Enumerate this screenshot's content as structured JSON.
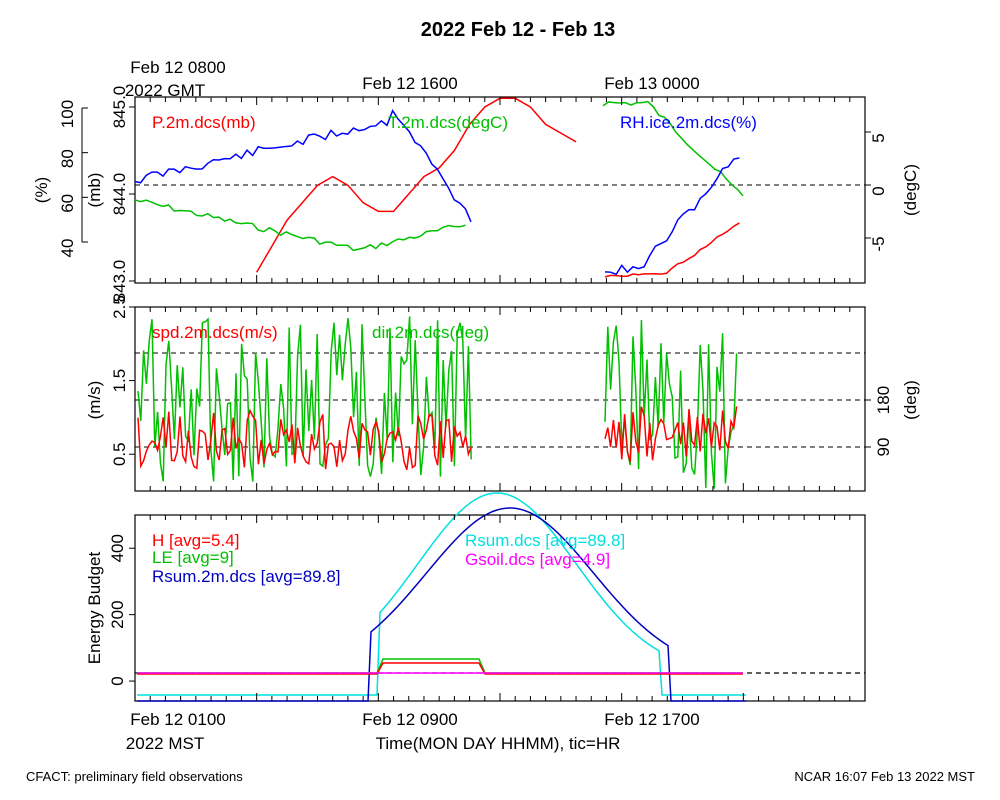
{
  "chart_data": {
    "title": "2022 Feb 12 - Feb 13",
    "x_domain": [
      "2022-02-12 00:00",
      "2022-02-14 00:00"
    ],
    "x_label": "Time(MON DAY HHMM), tic=HR",
    "x_ticks_top": [
      "Feb 12 0800",
      "Feb 12 1600",
      "Feb 13 0000"
    ],
    "x_ticks_top_sub": "2022 GMT",
    "x_ticks_bottom": [
      "Feb 12 0100",
      "Feb 12 0900",
      "Feb 12 1700"
    ],
    "x_ticks_bottom_sub": "2022 MST",
    "footer_left": "CFACT: preliminary field observations",
    "footer_right": "NCAR 16:07 Feb 13 2022 MST",
    "panels": [
      {
        "id": "state",
        "type": "line",
        "series": [
          {
            "name": "P.2m.dcs(mb)",
            "color": "#ff0000",
            "axis": "P",
            "x": [
              "2022-02-12 00:00",
              "2022-02-12 01:00",
              "2022-02-12 02:00",
              "2022-02-12 03:00",
              "2022-02-12 04:00",
              "2022-02-12 05:00",
              "2022-02-12 06:00",
              "2022-02-12 07:00",
              "2022-02-12 08:00",
              "2022-02-12 09:00",
              "2022-02-12 10:00",
              "2022-02-12 11:00",
              "2022-02-12 12:00",
              "2022-02-12 13:00",
              "2022-02-12 14:00",
              "2022-02-12 15:00",
              "2022-02-12 16:00",
              "2022-02-12 17:00",
              "2022-02-12 18:00",
              "2022-02-12 19:00",
              "2022-02-12 20:00",
              "2022-02-12 21:00",
              "2022-02-12 22:00",
              "2022-02-12 23:00",
              "2022-02-13 00:00",
              "2022-02-13 01:00",
              "2022-02-13 02:00",
              "2022-02-13 03:00",
              "2022-02-13 04:00",
              "2022-02-13 05:00",
              "2022-02-13 06:00",
              "2022-02-13 07:00",
              "2022-02-13 08:00",
              "2022-02-13 09:00",
              "2022-02-13 10:00",
              "2022-02-13 11:00",
              "2022-02-13 12:00",
              "2022-02-13 13:00",
              "2022-02-13 14:00",
              "2022-02-13 15:00",
              "2022-02-13 16:00"
            ],
            "y": [
              null,
              null,
              null,
              null,
              null,
              null,
              null,
              null,
              843.1,
              843.4,
              843.7,
              843.9,
              844.1,
              844.2,
              844.1,
              843.9,
              843.8,
              843.8,
              844.0,
              844.2,
              844.3,
              844.5,
              844.8,
              845.0,
              845.1,
              845.1,
              845.0,
              844.8,
              844.7,
              844.6,
              null,
              null,
              null,
              null,
              null,
              null,
              null,
              null,
              null,
              null,
              null
            ]
          },
          {
            "name": "T.2m.dcs(degC)",
            "color": "#00c000",
            "axis": "T",
            "x": [],
            "y": []
          },
          {
            "name": "RH.ice.2m.dcs(%)",
            "color": "#0000ff",
            "axis": "RH",
            "x": [],
            "y": []
          }
        ],
        "axes": {
          "RH": {
            "label": "(%)",
            "ticks": [
              40,
              60,
              80,
              100
            ]
          },
          "P": {
            "label": "(mb)",
            "ticks": [
              843.0,
              844.0,
              845.0
            ],
            "tick_labels": [
              "843.0",
              "844.0",
              "845.0"
            ]
          },
          "T": {
            "label": "(degC)",
            "ticks": [
              -5,
              0,
              5
            ]
          }
        }
      },
      {
        "id": "wind",
        "type": "line",
        "series": [
          {
            "name": "spd.2m.dcs(m/s)",
            "color": "#ff0000",
            "axis": "spd"
          },
          {
            "name": "dir.2m.dcs(deg)",
            "color": "#00c000",
            "axis": "dir"
          }
        ],
        "axes": {
          "spd": {
            "label": "(m/s)",
            "ticks": [
              0.5,
              1.5,
              2.5
            ],
            "tick_labels": [
              "0.5",
              "1.5",
              "2.5"
            ]
          },
          "dir": {
            "label": "(deg)",
            "ticks": [
              90,
              180
            ]
          }
        }
      },
      {
        "id": "energy",
        "type": "line",
        "ylabel": "Energy Budget",
        "ylim": [
          -60,
          500
        ],
        "yticks": [
          0,
          200,
          400
        ],
        "legend_left": [
          "H [avg=5.4]",
          "LE [avg=9]",
          "Rsum.2m.dcs [avg=89.8]"
        ],
        "legend_right": [
          "Rsum.dcs [avg=89.8]",
          "Gsoil.dcs [avg=4.9]"
        ],
        "series": [
          {
            "name": "H",
            "color": "#ff0000"
          },
          {
            "name": "LE",
            "color": "#00c000"
          },
          {
            "name": "Rsum.2m.dcs",
            "color": "#0000c0"
          },
          {
            "name": "Rsum.dcs",
            "color": "#00e0e0"
          },
          {
            "name": "Gsoil.dcs",
            "color": "#ff00ff"
          }
        ]
      }
    ]
  }
}
